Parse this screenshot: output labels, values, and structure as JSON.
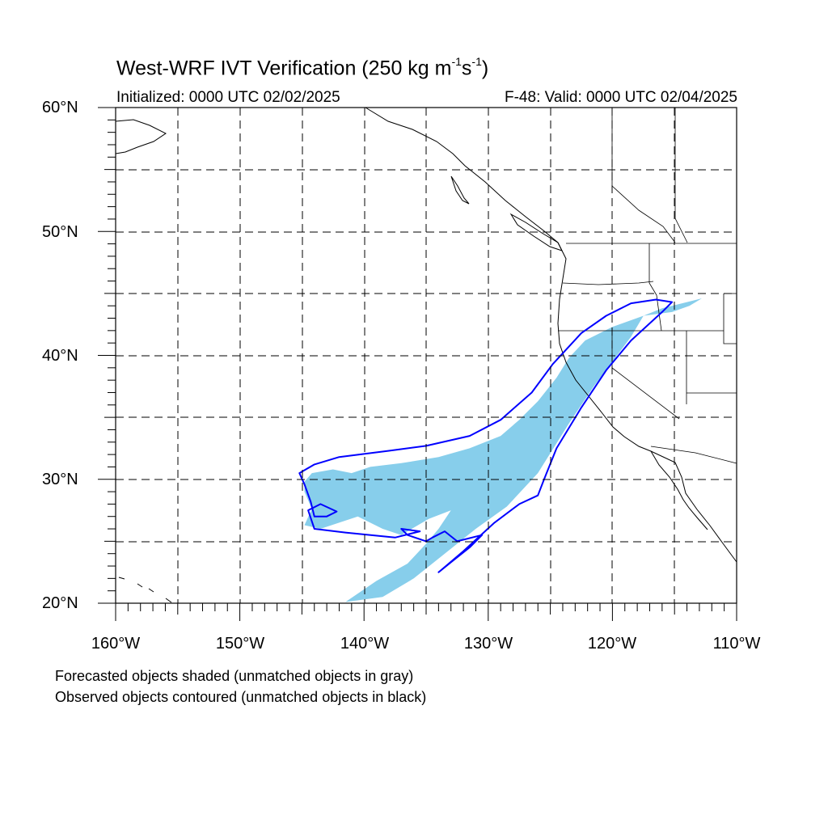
{
  "title": {
    "main": "West-WRF IVT Verification (250 kg m",
    "exp1": "-1",
    "mid": "s",
    "exp2": "-1",
    "close": ")"
  },
  "subtitle_left": "Initialized: 0000 UTC 02/02/2025",
  "subtitle_right": "F-48: Valid: 0000 UTC 02/04/2025",
  "lat_labels": [
    "60°N",
    "50°N",
    "40°N",
    "30°N",
    "20°N"
  ],
  "lon_labels": [
    "160°W",
    "150°W",
    "140°W",
    "130°W",
    "120°W",
    "110°W"
  ],
  "notes": [
    "Forecasted objects shaded (unmatched objects in gray)",
    "Observed objects contoured (unmatched objects in black)"
  ],
  "map": {
    "extent": {
      "lon_min": -160,
      "lon_max": -110,
      "lat_min": 20,
      "lat_max": 60
    },
    "forecast_fill_color": "#87ceeb",
    "observed_contour_color": "#0000ff",
    "forecast_object_polygon_lonlat": [
      [
        -144.8,
        29.8
      ],
      [
        -144.2,
        30.5
      ],
      [
        -142.5,
        30.8
      ],
      [
        -141.0,
        30.5
      ],
      [
        -139.5,
        31.0
      ],
      [
        -137.0,
        31.3
      ],
      [
        -134.0,
        31.8
      ],
      [
        -131.5,
        32.5
      ],
      [
        -129.0,
        33.5
      ],
      [
        -127.5,
        34.8
      ],
      [
        -126.0,
        36.3
      ],
      [
        -124.5,
        38.2
      ],
      [
        -123.5,
        39.8
      ],
      [
        -122.2,
        41.2
      ],
      [
        -120.0,
        42.3
      ],
      [
        -117.5,
        43.2
      ],
      [
        -116.0,
        43.8
      ],
      [
        -114.0,
        44.3
      ],
      [
        -112.8,
        44.6
      ],
      [
        -113.8,
        44.0
      ],
      [
        -115.2,
        43.5
      ],
      [
        -117.5,
        43.2
      ],
      [
        -118.5,
        41.5
      ],
      [
        -120.0,
        39.5
      ],
      [
        -121.5,
        37.5
      ],
      [
        -123.5,
        34.5
      ],
      [
        -126.0,
        30.5
      ],
      [
        -128.5,
        27.8
      ],
      [
        -131.0,
        26.0
      ],
      [
        -133.5,
        24.0
      ],
      [
        -136.0,
        22.0
      ],
      [
        -138.5,
        20.5
      ],
      [
        -141.5,
        20.1
      ],
      [
        -139.0,
        21.8
      ],
      [
        -136.5,
        23.2
      ],
      [
        -135.0,
        24.8
      ],
      [
        -134.0,
        26.0
      ],
      [
        -133.0,
        27.5
      ],
      [
        -134.8,
        26.8
      ],
      [
        -137.0,
        25.5
      ],
      [
        -138.5,
        26.0
      ],
      [
        -140.5,
        27.0
      ],
      [
        -143.5,
        26.0
      ],
      [
        -144.8,
        26.3
      ],
      [
        -144.2,
        27.6
      ],
      [
        -144.8,
        29.0
      ]
    ],
    "observed_object_polygon_lonlat": [
      [
        -145.2,
        30.5
      ],
      [
        -144.0,
        31.2
      ],
      [
        -142.0,
        31.8
      ],
      [
        -138.0,
        32.3
      ],
      [
        -135.0,
        32.7
      ],
      [
        -131.5,
        33.5
      ],
      [
        -129.0,
        34.8
      ],
      [
        -126.5,
        37.0
      ],
      [
        -124.8,
        39.3
      ],
      [
        -122.5,
        41.8
      ],
      [
        -120.5,
        43.2
      ],
      [
        -118.5,
        44.2
      ],
      [
        -116.5,
        44.5
      ],
      [
        -115.2,
        44.3
      ],
      [
        -116.0,
        43.5
      ],
      [
        -118.5,
        41.2
      ],
      [
        -120.5,
        38.8
      ],
      [
        -122.5,
        35.8
      ],
      [
        -124.5,
        32.5
      ],
      [
        -125.5,
        30.0
      ],
      [
        -126.0,
        28.7
      ],
      [
        -127.5,
        28.0
      ],
      [
        -129.5,
        26.5
      ],
      [
        -132.0,
        24.2
      ],
      [
        -134.0,
        22.5
      ],
      [
        -133.0,
        23.3
      ],
      [
        -131.5,
        24.5
      ],
      [
        -130.5,
        25.5
      ],
      [
        -132.5,
        25.0
      ],
      [
        -133.5,
        25.8
      ],
      [
        -134.5,
        25.3
      ],
      [
        -135.0,
        25.0
      ],
      [
        -136.5,
        25.5
      ],
      [
        -137.0,
        26.0
      ],
      [
        -135.5,
        25.8
      ],
      [
        -137.5,
        25.3
      ],
      [
        -141.5,
        25.7
      ],
      [
        -144.0,
        26.0
      ],
      [
        -144.5,
        27.5
      ],
      [
        -143.5,
        28.0
      ],
      [
        -142.2,
        27.4
      ],
      [
        -143.0,
        27.0
      ],
      [
        -144.0,
        27.0
      ],
      [
        -144.3,
        28.2
      ],
      [
        -144.8,
        29.6
      ]
    ]
  }
}
